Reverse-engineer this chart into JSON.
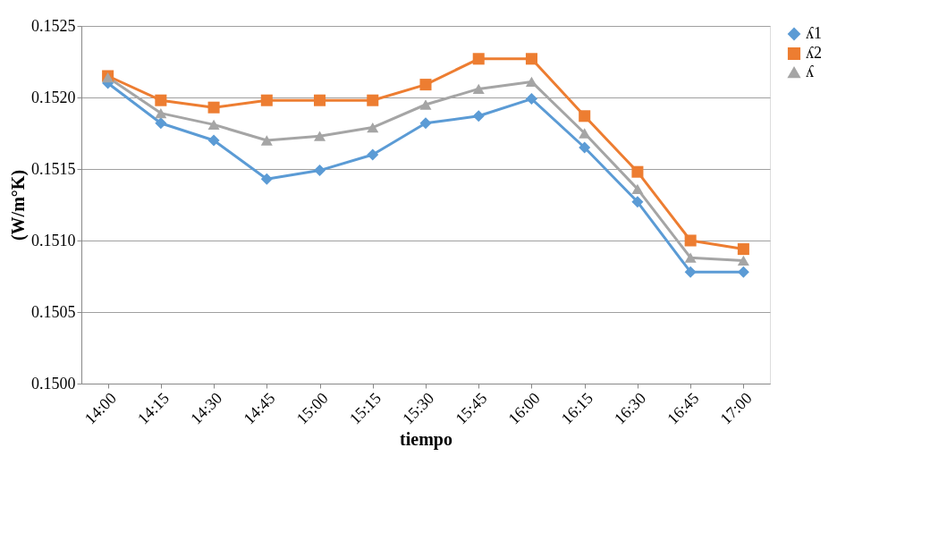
{
  "chart_data": {
    "type": "line",
    "xlabel": "tiempo",
    "ylabel": "(W/m°K)",
    "categories": [
      "14:00",
      "14:15",
      "14:30",
      "14:45",
      "15:00",
      "15:15",
      "15:30",
      "15:45",
      "16:00",
      "16:15",
      "16:30",
      "16:45",
      "17:00"
    ],
    "series": [
      {
        "name": "ʎ1",
        "color": "#5b9bd5",
        "marker": "diamond",
        "values": [
          0.1521,
          0.15182,
          0.1517,
          0.15143,
          0.15149,
          0.1516,
          0.15182,
          0.15187,
          0.15199,
          0.15165,
          0.15127,
          0.15078,
          0.15078
        ]
      },
      {
        "name": "ʎ2",
        "color": "#ed7d31",
        "marker": "square",
        "values": [
          0.15215,
          0.15198,
          0.15193,
          0.15198,
          0.15198,
          0.15198,
          0.15209,
          0.15227,
          0.15227,
          0.15187,
          0.15148,
          0.151,
          0.15094
        ]
      },
      {
        "name": "ʎ",
        "color": "#a5a5a5",
        "marker": "triangle",
        "values": [
          0.15214,
          0.15189,
          0.15181,
          0.1517,
          0.15173,
          0.15179,
          0.15195,
          0.15206,
          0.15211,
          0.15175,
          0.15136,
          0.15088,
          0.15086
        ]
      }
    ],
    "ylim": [
      0.15,
      0.1525
    ],
    "yticks": [
      {
        "value": 0.15,
        "label": "0.1500"
      },
      0.1505,
      {
        "value": 0.151,
        "label": "0.1510"
      },
      0.1515,
      {
        "value": 0.152,
        "label": "0.1520"
      },
      0.1525
    ],
    "grid": "y",
    "legend": "right",
    "line_style": "solid"
  }
}
